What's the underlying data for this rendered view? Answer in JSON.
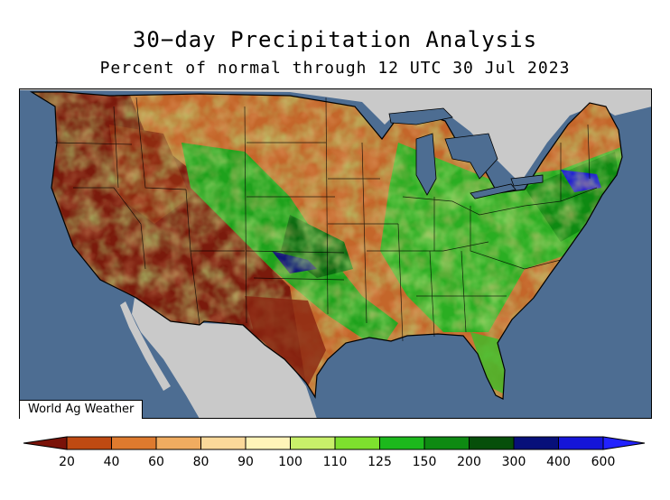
{
  "title": "30−day Precipitation Analysis",
  "subtitle": "Percent of normal through 12 UTC 30 Jul 2023",
  "credit": "World Ag Weather",
  "legend": {
    "labels": [
      "20",
      "40",
      "60",
      "80",
      "90",
      "100",
      "110",
      "125",
      "150",
      "200",
      "300",
      "400",
      "600"
    ],
    "colors": [
      "#7a1208",
      "#bf4a12",
      "#de7a2e",
      "#f0ac60",
      "#fbd99a",
      "#fff4b8",
      "#c8f06a",
      "#7ee02e",
      "#1cb81c",
      "#0e8a12",
      "#064f0a",
      "#07107a",
      "#1515d8",
      "#2222ff"
    ]
  },
  "colors": {
    "ocean": "#4d6d92",
    "neighbor_land": "#c9c9c9",
    "lakes": "#4d6d92"
  }
}
